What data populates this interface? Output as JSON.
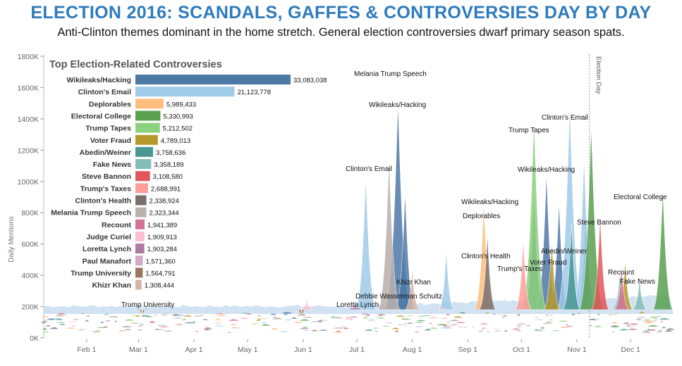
{
  "header": {
    "title": "ELECTION 2016: SCANDALS, GAFFES & CONTROVERSIES DAY BY DAY",
    "subtitle": "Anti-Clinton themes dominant in the home stretch. General election controversies dwarf primary season spats."
  },
  "colors": {
    "title": "#2d7bbd",
    "event_line": "#999999"
  },
  "chart_data": [
    {
      "type": "bar",
      "title": "Top Election-Related Controversies",
      "orientation": "horizontal",
      "categories": [
        "Wikileaks/Hacking",
        "Clinton's Email",
        "Deplorables",
        "Electoral College",
        "Trump Tapes",
        "Voter Fraud",
        "Abedin/Weiner",
        "Fake News",
        "Steve Bannon",
        "Trump's Taxes",
        "Clinton's Health",
        "Melania Trump Speech",
        "Recount",
        "Judge Curiel",
        "Loretta Lynch",
        "Paul Manafort",
        "Trump University",
        "Khizr Khan"
      ],
      "values": [
        33083038,
        21123778,
        5989433,
        5330993,
        5212502,
        4789013,
        3758636,
        3358189,
        3108580,
        2688991,
        2338924,
        2323344,
        1941389,
        1909913,
        1903284,
        1571360,
        1564791,
        1308444
      ],
      "value_labels": [
        "33,083,038",
        "21,123,778",
        "5,989,433",
        "5,330,993",
        "5,212,502",
        "4,789,013",
        "3,758,636",
        "3,358,189",
        "3,108,580",
        "2,688,991",
        "2,338,924",
        "2,323,344",
        "1,941,389",
        "1,909,913",
        "1,903,284",
        "1,571,360",
        "1,564,791",
        "1,308,444"
      ],
      "colors": [
        "#4e79a7",
        "#a0cbe8",
        "#ffbe7d",
        "#59a14f",
        "#8cd17d",
        "#b6992d",
        "#499894",
        "#86bcb6",
        "#e15759",
        "#ff9d9a",
        "#79706e",
        "#bab0ac",
        "#d37295",
        "#fabfd2",
        "#b07aa1",
        "#d4a6c8",
        "#9d7660",
        "#d7b5a6"
      ]
    },
    {
      "type": "area",
      "ylabel": "Daily Mentions",
      "ylim": [
        0,
        1800000
      ],
      "y_ticks": [
        0,
        200000,
        400000,
        600000,
        800000,
        1000000,
        1200000,
        1400000,
        1600000,
        1800000
      ],
      "y_tick_labels": [
        "0K",
        "200K",
        "400K",
        "600K",
        "800K",
        "1000K",
        "1200K",
        "1400K",
        "1600K",
        "1800K"
      ],
      "xlim": [
        "2016-01-08",
        "2016-12-25"
      ],
      "x_ticks": [
        "2016-02-01",
        "2016-03-01",
        "2016-04-01",
        "2016-05-01",
        "2016-06-01",
        "2016-07-01",
        "2016-08-01",
        "2016-09-01",
        "2016-10-01",
        "2016-11-01",
        "2016-12-01"
      ],
      "x_tick_labels": [
        "Feb 1",
        "Mar 1",
        "Apr 1",
        "May 1",
        "Jun 1",
        "Jul 1",
        "Aug 1",
        "Sep 1",
        "Oct 1",
        "Nov 1",
        "Dec 1"
      ],
      "event_line": {
        "date": "2016-11-08",
        "label": "Election Day"
      },
      "series": [
        {
          "name": "Wikileaks/Hacking",
          "color": "#4e79a7",
          "peaks": [
            [
              "2016-07-24",
              1350000
            ],
            [
              "2016-07-28",
              780000
            ],
            [
              "2016-10-08",
              780000
            ],
            [
              "2016-10-15",
              900000
            ],
            [
              "2016-10-22",
              720000
            ],
            [
              "2016-11-06",
              650000
            ]
          ]
        },
        {
          "name": "Clinton's Email",
          "color": "#a0cbe8",
          "peaks": [
            [
              "2016-07-06",
              880000
            ],
            [
              "2016-08-20",
              420000
            ],
            [
              "2016-10-28",
              1330000
            ],
            [
              "2016-11-05",
              1000000
            ]
          ]
        },
        {
          "name": "Deplorables",
          "color": "#ffbe7d",
          "peaks": [
            [
              "2016-09-10",
              720000
            ]
          ]
        },
        {
          "name": "Electoral College",
          "color": "#59a14f",
          "peaks": [
            [
              "2016-11-09",
              1200000
            ],
            [
              "2016-12-19",
              800000
            ]
          ]
        },
        {
          "name": "Trump Tapes",
          "color": "#8cd17d",
          "peaks": [
            [
              "2016-10-08",
              1250000
            ]
          ]
        },
        {
          "name": "Voter Fraud",
          "color": "#b6992d",
          "peaks": [
            [
              "2016-10-18",
              480000
            ],
            [
              "2016-11-28",
              360000
            ]
          ]
        },
        {
          "name": "Abedin/Weiner",
          "color": "#499894",
          "peaks": [
            [
              "2016-10-29",
              580000
            ]
          ]
        },
        {
          "name": "Fake News",
          "color": "#86bcb6",
          "peaks": [
            [
              "2016-11-25",
              300000
            ],
            [
              "2016-12-06",
              260000
            ]
          ]
        },
        {
          "name": "Steve Bannon",
          "color": "#e15759",
          "peaks": [
            [
              "2016-11-14",
              630000
            ]
          ]
        },
        {
          "name": "Trump's Taxes",
          "color": "#ff9d9a",
          "peaks": [
            [
              "2016-10-02",
              480000
            ]
          ]
        },
        {
          "name": "Clinton's Health",
          "color": "#79706e",
          "peaks": [
            [
              "2016-09-12",
              520000
            ]
          ]
        },
        {
          "name": "Melania Trump Speech",
          "color": "#bab0ac",
          "peaks": [
            [
              "2016-07-19",
              1000000
            ]
          ]
        },
        {
          "name": "Recount",
          "color": "#d37295",
          "peaks": [
            [
              "2016-11-26",
              320000
            ]
          ]
        },
        {
          "name": "Judge Curiel",
          "color": "#fabfd2",
          "peaks": [
            [
              "2016-06-03",
              140000
            ]
          ]
        },
        {
          "name": "Loretta Lynch",
          "color": "#b07aa1",
          "peaks": [
            [
              "2016-06-30",
              120000
            ]
          ]
        },
        {
          "name": "Paul Manafort",
          "color": "#d4a6c8",
          "peaks": [
            [
              "2016-08-17",
              100000
            ]
          ]
        },
        {
          "name": "Trump University",
          "color": "#9d7660",
          "peaks": [
            [
              "2016-03-03",
              60000
            ],
            [
              "2016-05-31",
              50000
            ]
          ]
        },
        {
          "name": "Khizr Khan",
          "color": "#d7b5a6",
          "peaks": [
            [
              "2016-08-01",
              310000
            ]
          ]
        }
      ],
      "annotations": [
        {
          "text": "Melania Trump Speech",
          "date": "2016-07-19"
        },
        {
          "text": "Wikileaks/Hacking",
          "date": "2016-07-24"
        },
        {
          "text": "Clinton's Email",
          "date": "2016-07-06"
        },
        {
          "text": "Khizr Khan",
          "date": "2016-08-01"
        },
        {
          "text": "Debbie Wasserman Schultz",
          "date": "2016-07-25"
        },
        {
          "text": "Loretta Lynch",
          "date": "2016-06-30"
        },
        {
          "text": "Trump University",
          "date": "2016-03-03"
        },
        {
          "text": "Wikileaks/Hacking",
          "date": "2016-09-10"
        },
        {
          "text": "Deplorables",
          "date": "2016-09-10"
        },
        {
          "text": "Clinton's Health",
          "date": "2016-09-12"
        },
        {
          "text": "Trump's Taxes",
          "date": "2016-10-02"
        },
        {
          "text": "Voter Fraud",
          "date": "2016-10-18"
        },
        {
          "text": "Abedin/Weiner",
          "date": "2016-10-29"
        },
        {
          "text": "Trump Tapes",
          "date": "2016-10-08"
        },
        {
          "text": "Wikileaks/Hacking",
          "date": "2016-10-15"
        },
        {
          "text": "Clinton's Email",
          "date": "2016-10-28"
        },
        {
          "text": "Steve Bannon",
          "date": "2016-11-14"
        },
        {
          "text": "Electoral College",
          "date": "2016-12-19"
        },
        {
          "text": "Recount",
          "date": "2016-11-26"
        },
        {
          "text": "Fake News",
          "date": "2016-12-06"
        }
      ]
    }
  ]
}
